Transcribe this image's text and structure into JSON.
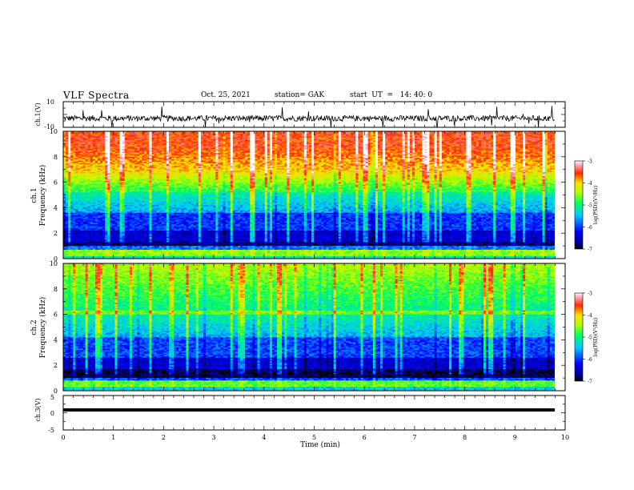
{
  "header": {
    "title": "VLF Spectra",
    "date": "Oct. 25, 2021",
    "station": "station= GAK",
    "start": "start  UT  =   14: 40: 0"
  },
  "chart_data": [
    {
      "type": "line",
      "panel": "ch1-waveform",
      "ylabel": "ch.1(V)",
      "ylim": [
        -10,
        10
      ],
      "yticks": [
        "10",
        "-10"
      ],
      "xlim": [
        0,
        10
      ],
      "note": "noisy waveform centered near -3 V with spikes"
    },
    {
      "type": "heatmap",
      "panel": "ch1-spectrogram",
      "ylabel": "ch.1\nFrequency (kHz)",
      "ylim": [
        0,
        10
      ],
      "yticks": [
        "0",
        "2",
        "4",
        "6",
        "8",
        "10"
      ],
      "xlim": [
        0,
        10
      ],
      "colorbar": {
        "label": "log(PSD)(V²/Hz)",
        "ticks": [
          "-3",
          "-4",
          "-5",
          "-6",
          "-7"
        ],
        "range": [
          -7,
          -3
        ]
      }
    },
    {
      "type": "heatmap",
      "panel": "ch2-spectrogram",
      "ylabel": "ch.2\nFrequency (kHz)",
      "ylim": [
        0,
        10
      ],
      "yticks": [
        "0",
        "2",
        "4",
        "6",
        "8",
        "10"
      ],
      "xlim": [
        0,
        10
      ],
      "colorbar": {
        "label": "log(PSD)(V²/Hz)",
        "ticks": [
          "-3",
          "-4",
          "-5",
          "-6",
          "-7"
        ],
        "range": [
          -7,
          -3
        ]
      }
    },
    {
      "type": "line",
      "panel": "ch3-waveform",
      "ylabel": "ch.3(V)",
      "ylim": [
        -5,
        5
      ],
      "yticks": [
        "5",
        "0",
        "-5"
      ],
      "xlim": [
        0,
        10
      ],
      "xlabel": "Time  (min)",
      "xticks": [
        "0",
        "1",
        "2",
        "3",
        "4",
        "5",
        "6",
        "7",
        "8",
        "9",
        "10"
      ],
      "note": "flat line near -1 V"
    }
  ],
  "colors": {
    "axis": "#000000",
    "background": "#ffffff"
  }
}
